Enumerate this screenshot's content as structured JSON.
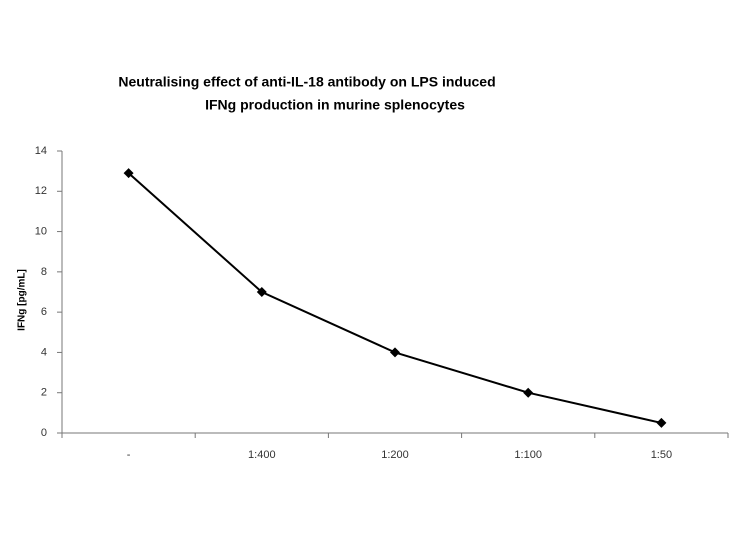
{
  "chart_data": {
    "type": "line",
    "title": [
      "Neutralising effect of anti-IL-18 antibody on LPS induced",
      "IFNg production in murine splenocytes"
    ],
    "y_label": "IFNg [pg/mL]",
    "categories": [
      "-",
      "1:400",
      "1:200",
      "1:100",
      "1:50"
    ],
    "values": [
      12.9,
      7.0,
      4.0,
      2.0,
      0.5
    ],
    "color": "#000000",
    "ylim": [
      0,
      14
    ],
    "yticks": [
      0,
      2,
      4,
      6,
      8,
      10,
      12,
      14
    ],
    "grid": false
  }
}
